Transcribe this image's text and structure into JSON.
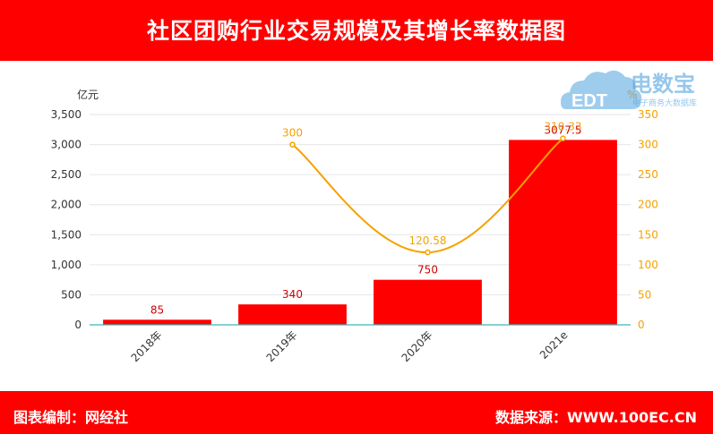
{
  "header": {
    "title": "社区团购行业交易规模及其增长率数据图"
  },
  "footer": {
    "compiled_by": "图表编制：网经社",
    "source": "数据来源：WWW.100EC.CN"
  },
  "watermark": {
    "brand_text": "电数宝",
    "brand_sub": "电子商务大数据库",
    "logo_letters": "EDT"
  },
  "colors": {
    "banner": "#ff0000",
    "bar": "#ff0000",
    "line": "#f5a200",
    "bar_label": "#d00000",
    "line_label": "#f5a200"
  },
  "chart_data": {
    "type": "bar",
    "categories": [
      "2018年",
      "2019年",
      "2020年",
      "2021e"
    ],
    "series": [
      {
        "type": "bar",
        "axis": "left",
        "values": [
          85,
          340,
          750,
          3077.5
        ],
        "labels": [
          "85",
          "340",
          "750",
          "3077.5"
        ]
      },
      {
        "type": "line",
        "axis": "right",
        "values": [
          null,
          300,
          120.58,
          310.33
        ],
        "labels": [
          "",
          "300",
          "120.58",
          "310.33"
        ]
      }
    ],
    "y_left": {
      "unit": "亿元",
      "ylim": [
        0,
        3500
      ],
      "ticks": [
        "0",
        "500",
        "1,000",
        "1,500",
        "2,000",
        "2,500",
        "3,000",
        "3,500"
      ]
    },
    "y_right": {
      "unit": "%",
      "ylim": [
        0,
        350
      ],
      "ticks": [
        "0",
        "50",
        "100",
        "150",
        "200",
        "250",
        "300",
        "350"
      ]
    },
    "grid": true,
    "legend": "none"
  }
}
